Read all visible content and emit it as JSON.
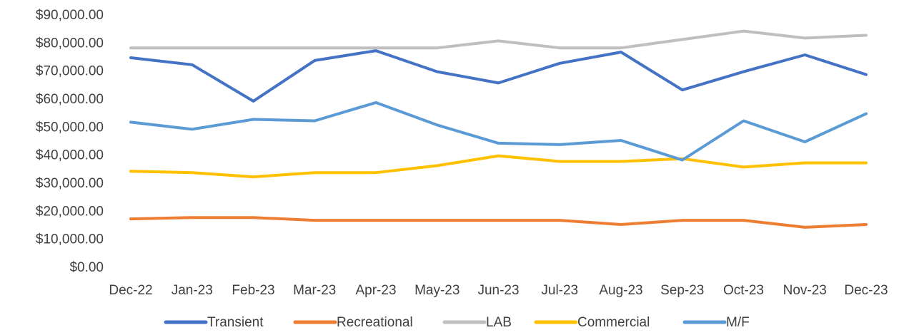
{
  "chart_data": {
    "type": "line",
    "title": "",
    "xlabel": "",
    "ylabel": "",
    "ylim": [
      0,
      90000
    ],
    "ytick_step": 10000,
    "ytick_labels": [
      "$0.00",
      "$10,000.00",
      "$20,000.00",
      "$30,000.00",
      "$40,000.00",
      "$50,000.00",
      "$60,000.00",
      "$70,000.00",
      "$80,000.00",
      "$90,000.00"
    ],
    "grid": false,
    "legend_position": "bottom",
    "categories": [
      "Dec-22",
      "Jan-23",
      "Feb-23",
      "Mar-23",
      "Apr-23",
      "May-23",
      "Jun-23",
      "Jul-23",
      "Aug-23",
      "Sep-23",
      "Oct-23",
      "Nov-23",
      "Dec-23"
    ],
    "series": [
      {
        "name": "Transient",
        "color": "#4472C4",
        "values": [
          74500,
          72000,
          59000,
          73500,
          77000,
          69500,
          65500,
          72500,
          76500,
          63000,
          69500,
          75500,
          68500
        ]
      },
      {
        "name": "Recreational",
        "color": "#ED7D31",
        "values": [
          17000,
          17500,
          17500,
          16500,
          16500,
          16500,
          16500,
          16500,
          15000,
          16500,
          16500,
          14000,
          15000
        ]
      },
      {
        "name": "LAB",
        "color": "#BFBFBF",
        "values": [
          78000,
          78000,
          78000,
          78000,
          78000,
          78000,
          80500,
          78000,
          78000,
          81000,
          84000,
          81500,
          82500
        ]
      },
      {
        "name": "Commercial",
        "color": "#FFC000",
        "values": [
          34000,
          33500,
          32000,
          33500,
          33500,
          36000,
          39500,
          37500,
          37500,
          38500,
          35500,
          37000,
          37000
        ]
      },
      {
        "name": "M/F",
        "color": "#5B9BD5",
        "values": [
          51500,
          49000,
          52500,
          52000,
          58500,
          50500,
          44000,
          43500,
          45000,
          38000,
          52000,
          44500,
          54500
        ]
      }
    ]
  }
}
